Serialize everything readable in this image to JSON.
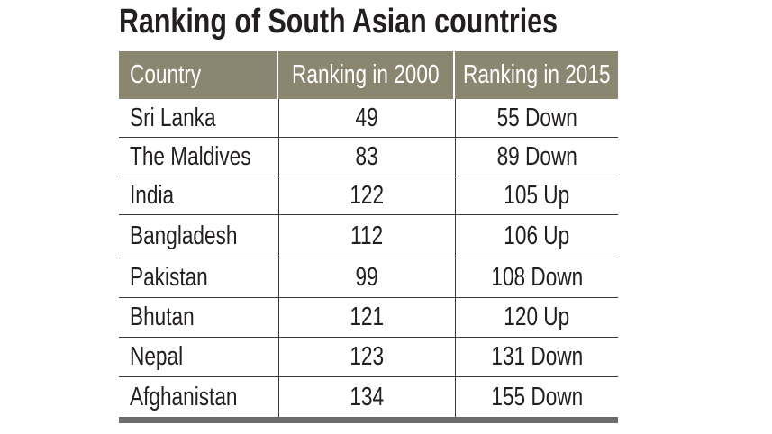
{
  "title": "Ranking of South Asian countries",
  "chart_data": {
    "type": "table",
    "title": "Ranking of South Asian countries",
    "columns": [
      "Country",
      "Ranking in 2000",
      "Ranking in 2015"
    ],
    "rows": [
      {
        "country": "Sri Lanka",
        "r2000": "49",
        "r2015": "55 Down"
      },
      {
        "country": "The Maldives",
        "r2000": "83",
        "r2015": "89 Down"
      },
      {
        "country": "India",
        "r2000": "122",
        "r2015": "105 Up"
      },
      {
        "country": "Bangladesh",
        "r2000": "112",
        "r2015": "106 Up"
      },
      {
        "country": "Pakistan",
        "r2000": "99",
        "r2015": "108 Down"
      },
      {
        "country": "Bhutan",
        "r2000": "121",
        "r2015": "120 Up"
      },
      {
        "country": "Nepal",
        "r2000": "123",
        "r2015": "131 Down"
      },
      {
        "country": "Afghanistan",
        "r2000": "134",
        "r2015": "155 Down"
      }
    ]
  },
  "colors": {
    "header_bg": "#8a8670",
    "header_text": "#ffffff",
    "bottom_bar": "#6b6b6b"
  }
}
